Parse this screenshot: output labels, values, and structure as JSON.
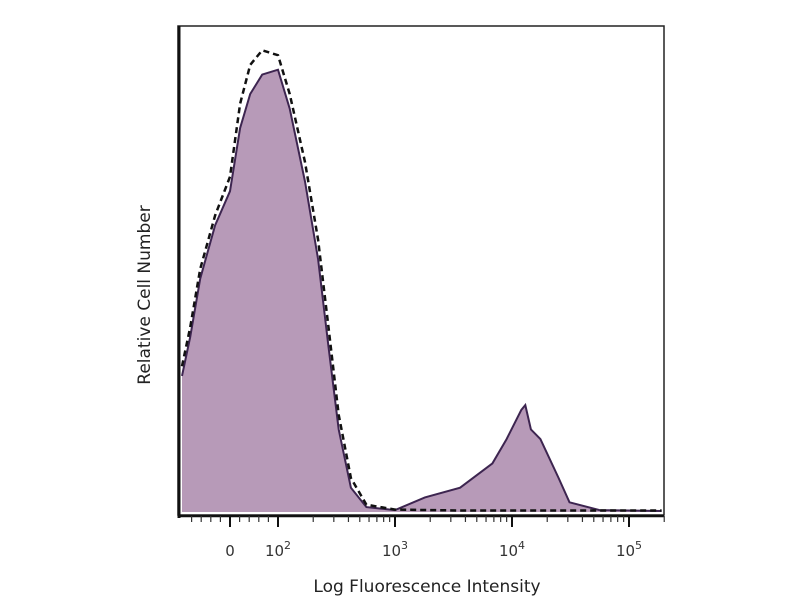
{
  "chart_data": {
    "type": "area",
    "title": "",
    "xlabel": "Log Fluorescence Intensity",
    "ylabel": "Relative Cell Number",
    "x_scale": "biexponential",
    "xlim": [
      -100,
      300000
    ],
    "ylim": [
      0,
      100
    ],
    "grid": false,
    "x_ticks": [
      {
        "value": 0,
        "base": "0",
        "exp": ""
      },
      {
        "value": 100,
        "base": "10",
        "exp": "2"
      },
      {
        "value": 1000,
        "base": "10",
        "exp": "3"
      },
      {
        "value": 10000,
        "base": "10",
        "exp": "4"
      },
      {
        "value": 100000,
        "base": "10",
        "exp": "5"
      }
    ],
    "series": [
      {
        "style": "filled",
        "fill": "#b79ab8",
        "stroke": "#3d2550",
        "x": [
          -100,
          -83,
          -62,
          -31,
          0,
          21,
          42,
          67,
          100,
          126,
          170,
          220,
          270,
          330,
          420,
          570,
          1000,
          1800,
          3600,
          6800,
          9000,
          12000,
          13000,
          14500,
          17500,
          25000,
          31000,
          56000,
          190000
        ],
        "y": [
          28,
          36,
          48,
          59,
          66,
          79,
          86,
          90,
          91,
          83,
          68,
          52,
          34,
          17,
          5,
          1,
          0.4,
          3,
          5,
          10,
          15,
          21,
          22,
          17,
          15,
          7,
          2,
          0.4,
          0.2
        ]
      },
      {
        "style": "dashed",
        "stroke": "#111111",
        "x": [
          -100,
          -83,
          -62,
          -31,
          0,
          21,
          42,
          67,
          100,
          126,
          170,
          220,
          270,
          330,
          420,
          570,
          1000,
          3600,
          10000,
          30000,
          100000,
          190000
        ],
        "y": [
          30,
          38,
          50,
          61,
          69,
          84,
          92,
          95,
          94,
          86,
          72,
          56,
          38,
          20,
          7,
          1.5,
          0.5,
          0.3,
          0.3,
          0.3,
          0.3,
          0.3
        ]
      }
    ]
  }
}
